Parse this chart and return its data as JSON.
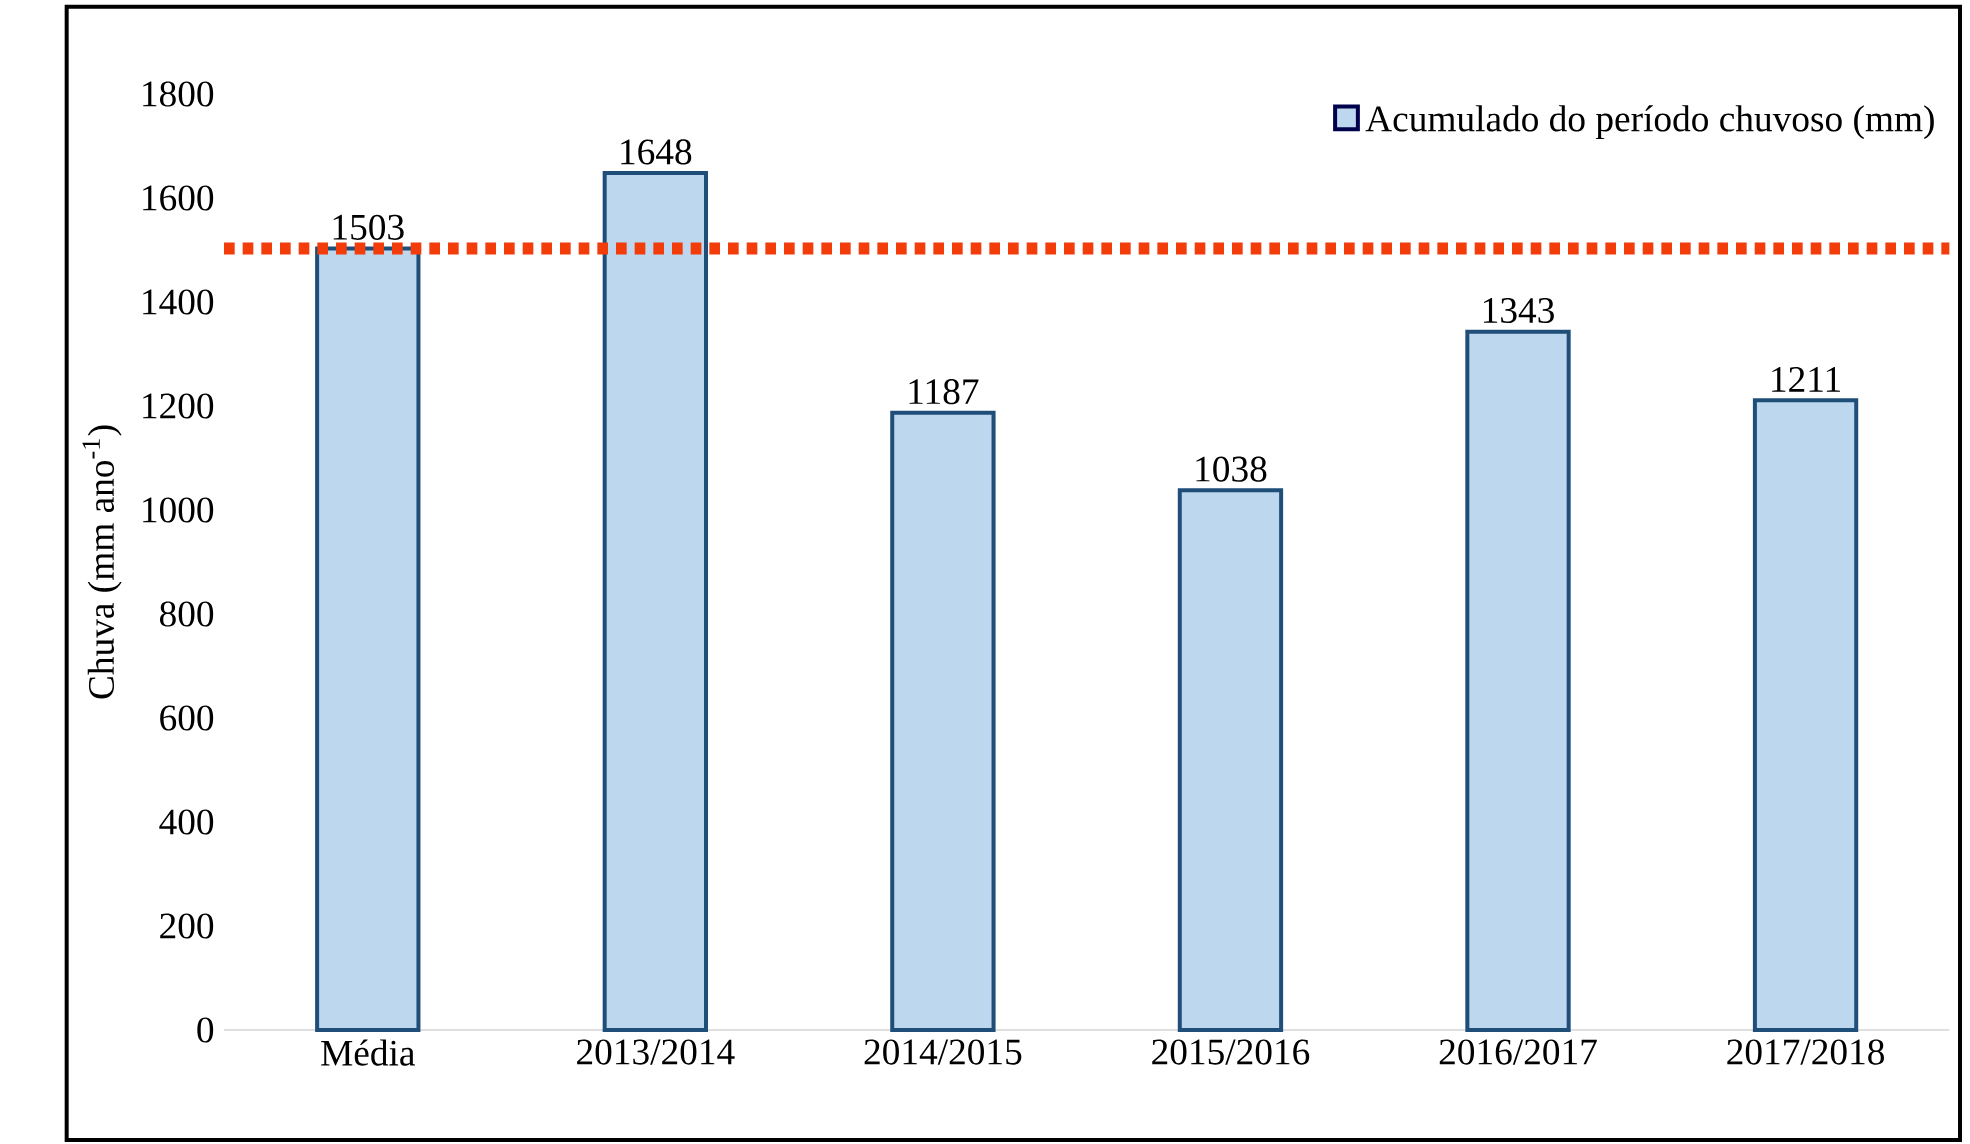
{
  "chart_data": {
    "type": "bar",
    "categories": [
      "Média",
      "2013/2014",
      "2014/2015",
      "2015/2016",
      "2016/2017",
      "2017/2018"
    ],
    "series": [
      {
        "name": "Acumulado do período chuvoso (mm)",
        "color": "#bdd7ee",
        "values": [
          1503,
          1648,
          1187,
          1038,
          1343,
          1211
        ]
      }
    ],
    "ylabel": "Chuva (mm ano$^{-1}$)",
    "ylim": [
      0,
      1800
    ],
    "yticks": [
      0,
      200,
      400,
      600,
      800,
      1000,
      1200,
      1400,
      1600,
      1800
    ],
    "ref_lines": [
      {
        "axis": "y",
        "value": 1503,
        "color": "#f23c0a",
        "line_style": "dotted"
      }
    ],
    "data_labels": true,
    "legend": "top right",
    "grid": false
  }
}
